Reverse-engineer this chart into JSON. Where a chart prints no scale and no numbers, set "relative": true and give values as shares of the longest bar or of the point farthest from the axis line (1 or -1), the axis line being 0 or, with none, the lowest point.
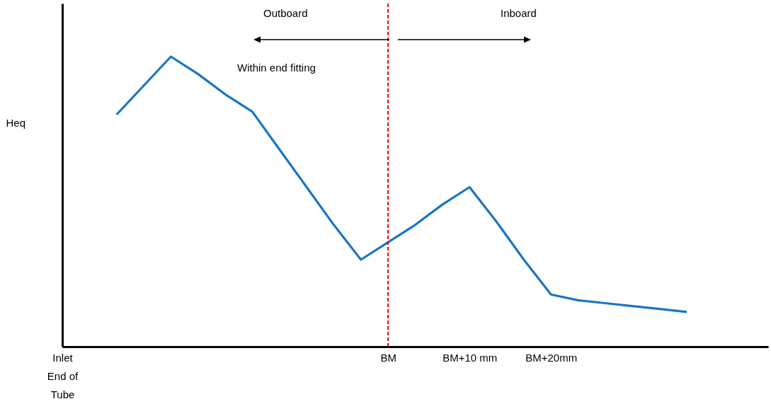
{
  "chart_data": {
    "type": "line",
    "relative": true,
    "ylabel": "Heq",
    "categories": [
      "Inlet End of Tube",
      null,
      null,
      null,
      null,
      null,
      null,
      null,
      null,
      null,
      null,
      null,
      "BM",
      null,
      null,
      "BM+10 mm",
      null,
      null,
      "BM+20mm",
      null,
      null,
      null,
      null,
      null,
      null,
      null,
      null
    ],
    "series": [
      {
        "color": "#1a75c2",
        "values": [
          null,
          null,
          0.8,
          0.9,
          1,
          0.94,
          0.87,
          0.81,
          0.68,
          0.55,
          0.42,
          0.3,
          0.36,
          0.42,
          0.49,
          0.55,
          0.43,
          0.3,
          0.18,
          0.16,
          0.15,
          0.14,
          0.13,
          0.12,
          null,
          null,
          null
        ]
      }
    ],
    "ref_lines": [
      {
        "axis": "x",
        "value": "BM",
        "color": "#e00000",
        "line_style": "dashed"
      }
    ],
    "annotations": [
      "Outboard",
      "Inboard",
      "Within end fitting"
    ],
    "grid": false,
    "marker": "none",
    "line_style": "solid"
  }
}
